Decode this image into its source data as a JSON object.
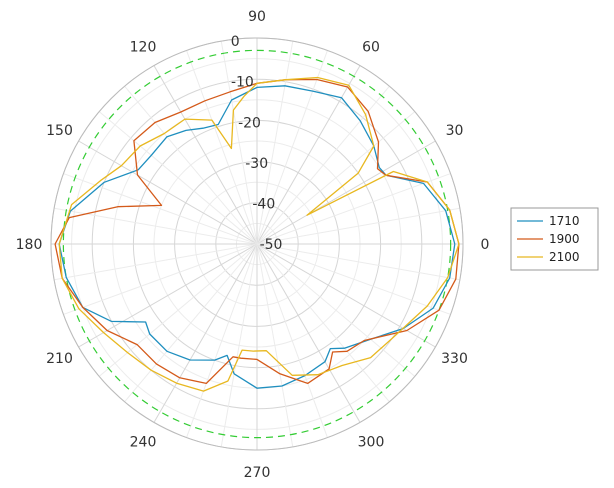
{
  "chart_data": {
    "type": "polar-line",
    "r_range": [
      -50,
      0
    ],
    "r_ticks": [
      -50,
      -40,
      -30,
      -20,
      -10,
      0
    ],
    "theta_ticks": [
      0,
      30,
      60,
      90,
      120,
      150,
      180,
      210,
      240,
      270,
      300,
      330
    ],
    "grid": true,
    "reference_circle": {
      "r": -3,
      "color": "#33cc33",
      "style": "dashed"
    },
    "legend_position": "right",
    "series": [
      {
        "name": "1710",
        "color": "#1f8fbf",
        "points": [
          [
            0,
            -2
          ],
          [
            10,
            -3.5
          ],
          [
            20,
            -7
          ],
          [
            28,
            -14.5
          ],
          [
            32,
            -15
          ],
          [
            40,
            -13
          ],
          [
            50,
            -11
          ],
          [
            60,
            -9
          ],
          [
            70,
            -10.5
          ],
          [
            80,
            -11
          ],
          [
            90,
            -12
          ],
          [
            100,
            -14.5
          ],
          [
            108,
            -19.5
          ],
          [
            115,
            -19
          ],
          [
            122,
            -17.5
          ],
          [
            130,
            -16
          ],
          [
            140,
            -16.5
          ],
          [
            148,
            -16
          ],
          [
            158,
            -10
          ],
          [
            170,
            -4
          ],
          [
            180,
            -2
          ],
          [
            190,
            -3
          ],
          [
            200,
            -5
          ],
          [
            208,
            -10
          ],
          [
            215,
            -17
          ],
          [
            220,
            -16
          ],
          [
            230,
            -16
          ],
          [
            240,
            -17.5
          ],
          [
            250,
            -20
          ],
          [
            255,
            -22
          ],
          [
            260,
            -18
          ],
          [
            270,
            -15
          ],
          [
            280,
            -15
          ],
          [
            290,
            -16
          ],
          [
            300,
            -17
          ],
          [
            305,
            -19
          ],
          [
            310,
            -17
          ],
          [
            320,
            -14
          ],
          [
            330,
            -9
          ],
          [
            340,
            -4.5
          ],
          [
            350,
            -2.5
          ],
          [
            360,
            -2
          ]
        ]
      },
      {
        "name": "1900",
        "color": "#d45a1a",
        "points": [
          [
            0,
            -1
          ],
          [
            10,
            -2.5
          ],
          [
            20,
            -6
          ],
          [
            28,
            -14.5
          ],
          [
            32,
            -15.5
          ],
          [
            40,
            -11.5
          ],
          [
            50,
            -8
          ],
          [
            60,
            -6
          ],
          [
            70,
            -7.5
          ],
          [
            80,
            -9.5
          ],
          [
            90,
            -11
          ],
          [
            100,
            -12.5
          ],
          [
            110,
            -13
          ],
          [
            120,
            -13
          ],
          [
            130,
            -11.5
          ],
          [
            140,
            -11
          ],
          [
            150,
            -16.5
          ],
          [
            158,
            -25
          ],
          [
            165,
            -15
          ],
          [
            172,
            -4
          ],
          [
            180,
            -1
          ],
          [
            190,
            -2
          ],
          [
            200,
            -5
          ],
          [
            210,
            -8
          ],
          [
            220,
            -12
          ],
          [
            230,
            -12
          ],
          [
            240,
            -12.5
          ],
          [
            250,
            -14
          ],
          [
            258,
            -22
          ],
          [
            262,
            -22
          ],
          [
            270,
            -22
          ],
          [
            280,
            -18
          ],
          [
            290,
            -14
          ],
          [
            300,
            -15
          ],
          [
            305,
            -18
          ],
          [
            310,
            -16
          ],
          [
            318,
            -15
          ],
          [
            330,
            -8
          ],
          [
            340,
            -3
          ],
          [
            350,
            -1
          ],
          [
            360,
            -1
          ]
        ]
      },
      {
        "name": "2100",
        "color": "#e8b820",
        "points": [
          [
            0,
            -1
          ],
          [
            10,
            -2.5
          ],
          [
            20,
            -6
          ],
          [
            28,
            -12.5
          ],
          [
            30,
            -36
          ],
          [
            35,
            -20
          ],
          [
            40,
            -13
          ],
          [
            50,
            -9
          ],
          [
            60,
            -5.5
          ],
          [
            70,
            -7
          ],
          [
            80,
            -9.5
          ],
          [
            90,
            -11
          ],
          [
            95,
            -14
          ],
          [
            100,
            -17
          ],
          [
            105,
            -26
          ],
          [
            110,
            -18
          ],
          [
            120,
            -15
          ],
          [
            130,
            -15
          ],
          [
            140,
            -13
          ],
          [
            150,
            -12
          ],
          [
            158,
            -9
          ],
          [
            168,
            -4
          ],
          [
            180,
            -2
          ],
          [
            190,
            -2
          ],
          [
            200,
            -4
          ],
          [
            210,
            -7
          ],
          [
            220,
            -9
          ],
          [
            230,
            -10
          ],
          [
            240,
            -11
          ],
          [
            250,
            -12
          ],
          [
            258,
            -16
          ],
          [
            262,
            -24
          ],
          [
            268,
            -24
          ],
          [
            275,
            -24
          ],
          [
            285,
            -17
          ],
          [
            295,
            -15
          ],
          [
            305,
            -14
          ],
          [
            315,
            -11
          ],
          [
            325,
            -10
          ],
          [
            340,
            -6
          ],
          [
            350,
            -3
          ],
          [
            360,
            -1
          ]
        ]
      }
    ]
  }
}
